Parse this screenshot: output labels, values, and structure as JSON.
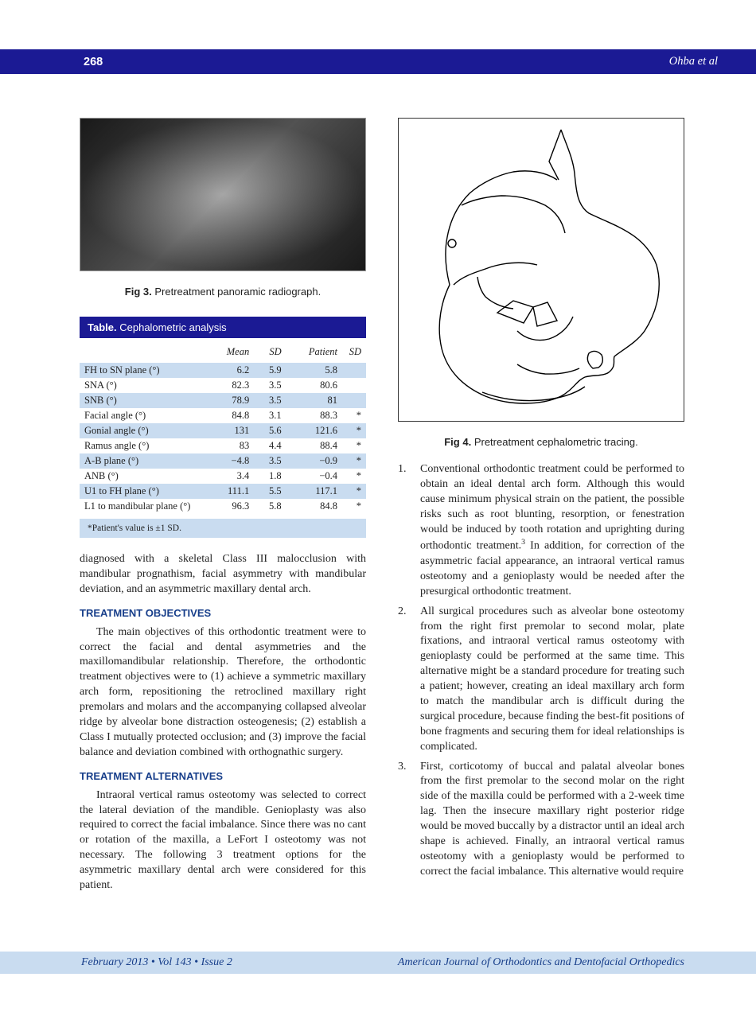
{
  "header": {
    "page_number": "268",
    "authors": "Ohba et al"
  },
  "fig3": {
    "label": "Fig 3.",
    "caption": "Pretreatment panoramic radiograph."
  },
  "fig4": {
    "label": "Fig 4.",
    "caption": "Pretreatment cephalometric tracing."
  },
  "table": {
    "title_bold": "Table.",
    "title_rest": "Cephalometric analysis",
    "columns": [
      "",
      "Mean",
      "SD",
      "Patient",
      "SD"
    ],
    "rows": [
      {
        "label": "FH to SN plane (°)",
        "mean": "6.2",
        "sd": "5.9",
        "patient": "5.8",
        "sdflag": "",
        "stripe": true
      },
      {
        "label": "SNA (°)",
        "mean": "82.3",
        "sd": "3.5",
        "patient": "80.6",
        "sdflag": "",
        "stripe": false
      },
      {
        "label": "SNB (°)",
        "mean": "78.9",
        "sd": "3.5",
        "patient": "81",
        "sdflag": "",
        "stripe": true
      },
      {
        "label": "Facial angle (°)",
        "mean": "84.8",
        "sd": "3.1",
        "patient": "88.3",
        "sdflag": "*",
        "stripe": false
      },
      {
        "label": "Gonial angle (°)",
        "mean": "131",
        "sd": "5.6",
        "patient": "121.6",
        "sdflag": "*",
        "stripe": true
      },
      {
        "label": "Ramus angle (°)",
        "mean": "83",
        "sd": "4.4",
        "patient": "88.4",
        "sdflag": "*",
        "stripe": false
      },
      {
        "label": "A-B plane (°)",
        "mean": "−4.8",
        "sd": "3.5",
        "patient": "−0.9",
        "sdflag": "*",
        "stripe": true
      },
      {
        "label": "ANB (°)",
        "mean": "3.4",
        "sd": "1.8",
        "patient": "−0.4",
        "sdflag": "*",
        "stripe": false
      },
      {
        "label": "U1 to FH plane (°)",
        "mean": "111.1",
        "sd": "5.5",
        "patient": "117.1",
        "sdflag": "*",
        "stripe": true
      },
      {
        "label": "L1 to mandibular plane (°)",
        "mean": "96.3",
        "sd": "5.8",
        "patient": "84.8",
        "sdflag": "*",
        "stripe": false
      }
    ],
    "footnote": "*Patient's value is ±1 SD."
  },
  "left_text": {
    "p1": "diagnosed with a skeletal Class III malocclusion with mandibular prognathism, facial asymmetry with mandibular deviation, and an asymmetric maxillary dental arch.",
    "h1": "TREATMENT OBJECTIVES",
    "p2": "The main objectives of this orthodontic treatment were to correct the facial and dental asymmetries and the maxillomandibular relationship. Therefore, the orthodontic treatment objectives were to (1) achieve a symmetric maxillary arch form, repositioning the retroclined maxillary right premolars and molars and the accompanying collapsed alveolar ridge by alveolar bone distraction osteogenesis; (2) establish a Class I mutually protected occlusion; and (3) improve the facial balance and deviation combined with orthognathic surgery.",
    "h2": "TREATMENT ALTERNATIVES",
    "p3": "Intraoral vertical ramus osteotomy was selected to correct the lateral deviation of the mandible. Genioplasty was also required to correct the facial imbalance. Since there was no cant or rotation of the maxilla, a LeFort I osteotomy was not necessary. The following 3 treatment options for the asymmetric maxillary dental arch were considered for this patient."
  },
  "right_list": {
    "item1a": "Conventional orthodontic treatment could be performed to obtain an ideal dental arch form. Although this would cause minimum physical strain on the patient, the possible risks such as root blunting, resorption, or fenestration would be induced by tooth rotation and uprighting during orthodontic treatment.",
    "item1b": " In addition, for correction of the asymmetric facial appearance, an intraoral vertical ramus osteotomy and a genioplasty would be needed after the presurgical orthodontic treatment.",
    "ref1": "3",
    "item2": "All surgical procedures such as alveolar bone osteotomy from the right first premolar to second molar, plate fixations, and intraoral vertical ramus osteotomy with genioplasty could be performed at the same time. This alternative might be a standard procedure for treating such a patient; however, creating an ideal maxillary arch form to match the mandibular arch is difficult during the surgical procedure, because finding the best-fit positions of bone fragments and securing them for ideal relationships is complicated.",
    "item3": "First, corticotomy of buccal and palatal alveolar bones from the first premolar to the second molar on the right side of the maxilla could be performed with a 2-week time lag. Then the insecure maxillary right posterior ridge would be moved buccally by a distractor until an ideal arch shape is achieved. Finally, an intraoral vertical ramus osteotomy with a genioplasty would be performed to correct the facial imbalance. This alternative would require"
  },
  "footer": {
    "left": "February 2013 • Vol 143 • Issue 2",
    "right": "American Journal of Orthodontics and Dentofacial Orthopedics"
  },
  "colors": {
    "header_bg": "#1b1a94",
    "stripe": "#c9dcf0",
    "heading": "#173e8a"
  }
}
